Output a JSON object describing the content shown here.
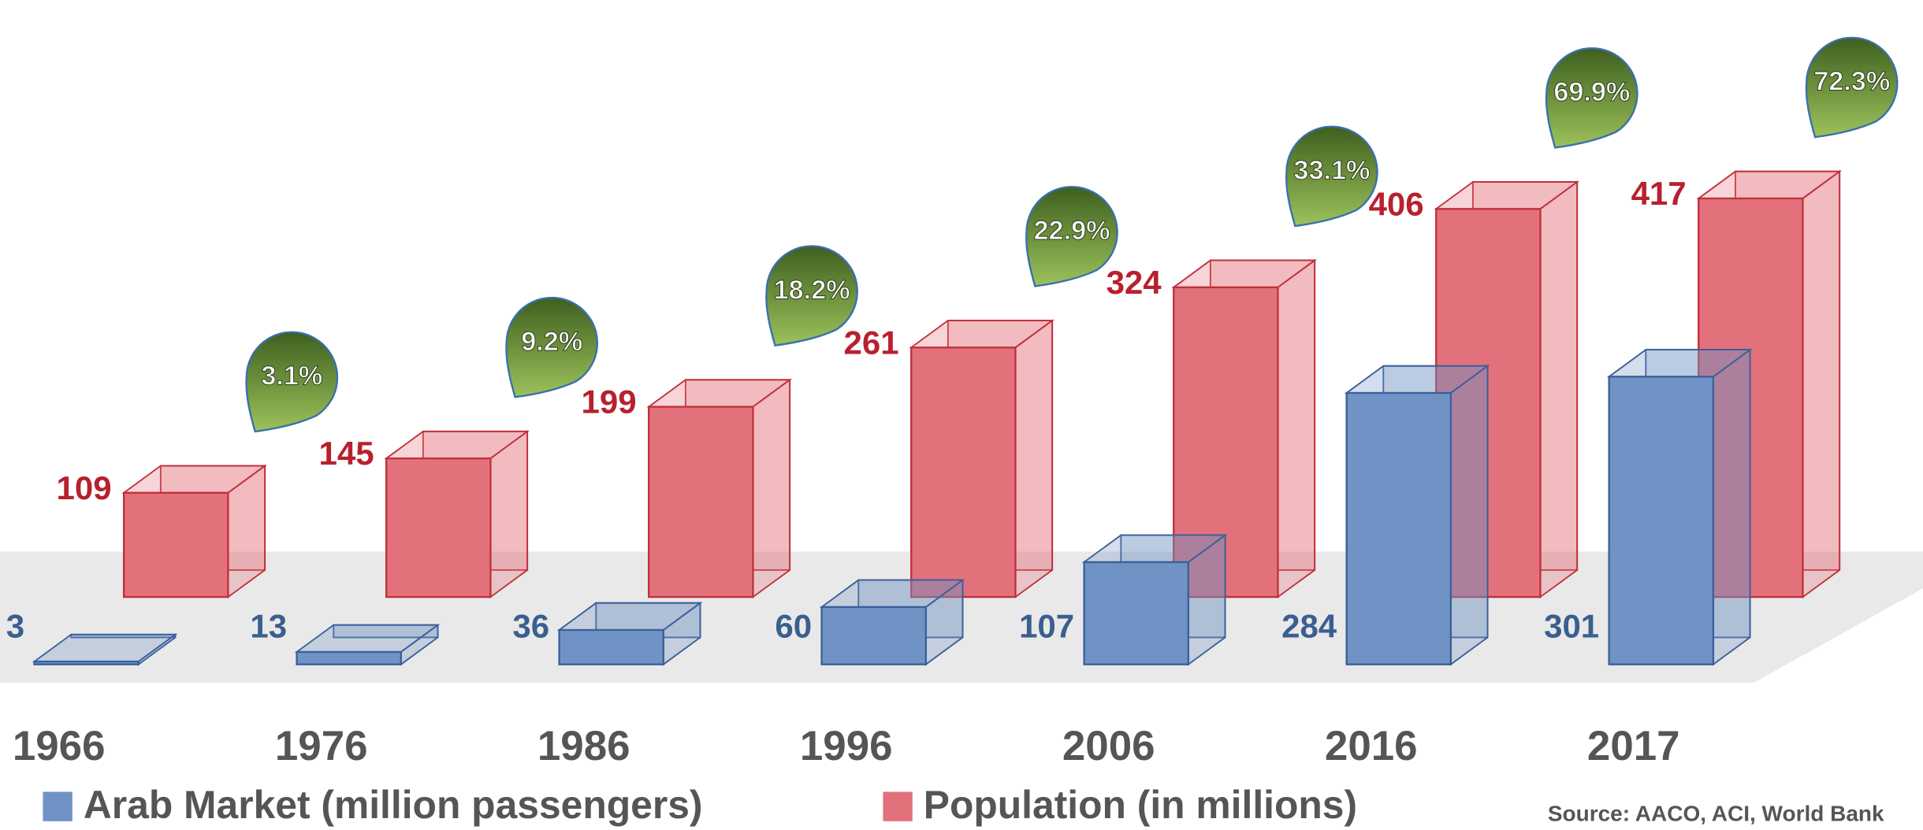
{
  "chart_data": {
    "type": "bar3d",
    "categories": [
      "1966",
      "1976",
      "1986",
      "1996",
      "2006",
      "2016",
      "2017"
    ],
    "series": [
      {
        "name": "Arab Market (million passengers)",
        "color": "#6f93c4",
        "values": [
          3,
          13,
          36,
          60,
          107,
          284,
          301
        ]
      },
      {
        "name": "Population (in millions)",
        "color": "#e3717b",
        "values": [
          109,
          145,
          199,
          261,
          324,
          406,
          417
        ]
      }
    ],
    "ratio": {
      "color": "#5f8f2f",
      "values": [
        3.1,
        9.2,
        18.2,
        22.9,
        33.1,
        69.9,
        72.3
      ],
      "value_labels": [
        "3.1%",
        "9.2%",
        "18.2%",
        "22.9%",
        "33.1%",
        "69.9%",
        "72.3%"
      ]
    },
    "source": "Source: AACO, ACI, World Bank"
  }
}
